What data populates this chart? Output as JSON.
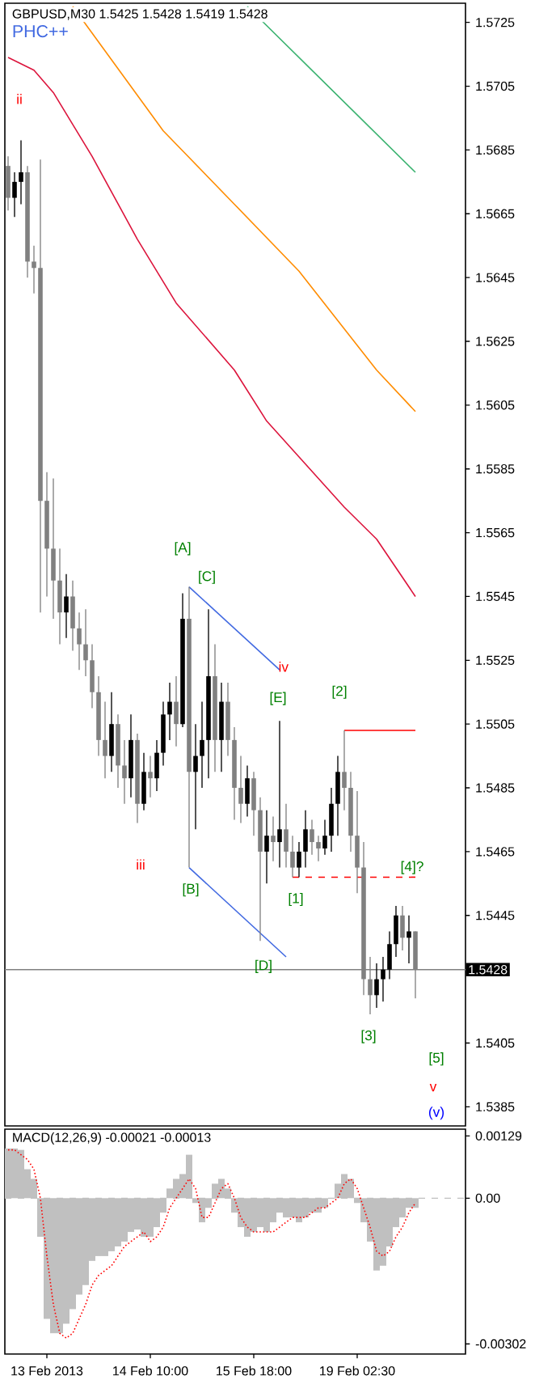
{
  "chart_data": [
    {
      "type": "candlestick",
      "title": "GBPUSD,M30  1.5425 1.5428 1.5419 1.5428",
      "subtitle": "PHC++",
      "categories": [
        null,
        null,
        null,
        null,
        null,
        null,
        null,
        null,
        null,
        null,
        null,
        null,
        null,
        null,
        null,
        null,
        null,
        null,
        null,
        null,
        null,
        null,
        null,
        null,
        null,
        null,
        null,
        null,
        null,
        null,
        null,
        null,
        null,
        null,
        null,
        null,
        null,
        null,
        null,
        null,
        null,
        null,
        null,
        null,
        null,
        null,
        null,
        null,
        null,
        null,
        null,
        null,
        null,
        null,
        null,
        null,
        null,
        null,
        null,
        null,
        null,
        null,
        null,
        null
      ],
      "ohlc": [
        [
          1.568,
          1.5683,
          1.5666,
          1.567
        ],
        [
          1.567,
          1.5678,
          1.5664,
          1.5675
        ],
        [
          1.5675,
          1.5688,
          1.5668,
          1.5678
        ],
        [
          1.5678,
          1.568,
          1.5645,
          1.565
        ],
        [
          1.565,
          1.5655,
          1.564,
          1.5648
        ],
        [
          1.5648,
          1.5682,
          1.554,
          1.5575
        ],
        [
          1.5575,
          1.5584,
          1.5545,
          1.556
        ],
        [
          1.556,
          1.5582,
          1.5538,
          1.555
        ],
        [
          1.555,
          1.556,
          1.553,
          1.554
        ],
        [
          1.554,
          1.5552,
          1.5532,
          1.5545
        ],
        [
          1.5545,
          1.555,
          1.5528,
          1.5535
        ],
        [
          1.5535,
          1.554,
          1.5522,
          1.553
        ],
        [
          1.553,
          1.5541,
          1.552,
          1.5525
        ],
        [
          1.5525,
          1.553,
          1.551,
          1.5515
        ],
        [
          1.5515,
          1.552,
          1.5495,
          1.55
        ],
        [
          1.55,
          1.5512,
          1.5488,
          1.5495
        ],
        [
          1.5495,
          1.5515,
          1.549,
          1.5505
        ],
        [
          1.5505,
          1.5508,
          1.5485,
          1.5492
        ],
        [
          1.5492,
          1.55,
          1.548,
          1.5488
        ],
        [
          1.5488,
          1.5508,
          1.5482,
          1.55
        ],
        [
          1.55,
          1.5502,
          1.5474,
          1.548
        ],
        [
          1.548,
          1.5496,
          1.5478,
          1.549
        ],
        [
          1.549,
          1.5495,
          1.5482,
          1.5488
        ],
        [
          1.5488,
          1.55,
          1.5484,
          1.5496
        ],
        [
          1.5496,
          1.5512,
          1.5492,
          1.5508
        ],
        [
          1.5508,
          1.5518,
          1.55,
          1.5512
        ],
        [
          1.5512,
          1.552,
          1.5498,
          1.5505
        ],
        [
          1.5505,
          1.5546,
          1.5504,
          1.5538
        ],
        [
          1.5538,
          1.5548,
          1.546,
          1.549
        ],
        [
          1.549,
          1.5505,
          1.5472,
          1.5495
        ],
        [
          1.5495,
          1.5512,
          1.5485,
          1.55
        ],
        [
          1.55,
          1.5541,
          1.5488,
          1.552
        ],
        [
          1.552,
          1.553,
          1.549,
          1.55
        ],
        [
          1.55,
          1.5518,
          1.549,
          1.5512
        ],
        [
          1.5512,
          1.5518,
          1.5495,
          1.55
        ],
        [
          1.55,
          1.5504,
          1.5475,
          1.5485
        ],
        [
          1.5485,
          1.5495,
          1.5474,
          1.548
        ],
        [
          1.548,
          1.5492,
          1.5476,
          1.5488
        ],
        [
          1.5488,
          1.549,
          1.547,
          1.5478
        ],
        [
          1.5478,
          1.5482,
          1.5437,
          1.5465
        ],
        [
          1.5465,
          1.5478,
          1.5455,
          1.547
        ],
        [
          1.547,
          1.5476,
          1.5462,
          1.5468
        ],
        [
          1.5468,
          1.5506,
          1.546,
          1.5472
        ],
        [
          1.5472,
          1.548,
          1.546,
          1.5465
        ],
        [
          1.5465,
          1.547,
          1.5457,
          1.546
        ],
        [
          1.546,
          1.5468,
          1.5457,
          1.5465
        ],
        [
          1.5465,
          1.5478,
          1.546,
          1.5472
        ],
        [
          1.5472,
          1.5475,
          1.5464,
          1.5468
        ],
        [
          1.5468,
          1.547,
          1.5462,
          1.5466
        ],
        [
          1.5466,
          1.5475,
          1.5464,
          1.547
        ],
        [
          1.547,
          1.5485,
          1.5465,
          1.548
        ],
        [
          1.548,
          1.5495,
          1.547,
          1.549
        ],
        [
          1.549,
          1.5503,
          1.5478,
          1.5485
        ],
        [
          1.5485,
          1.549,
          1.5465,
          1.547
        ],
        [
          1.547,
          1.5484,
          1.5452,
          1.546
        ],
        [
          1.546,
          1.5468,
          1.542,
          1.5425
        ],
        [
          1.5425,
          1.5432,
          1.5414,
          1.542
        ],
        [
          1.542,
          1.543,
          1.5416,
          1.5425
        ],
        [
          1.5425,
          1.5432,
          1.5418,
          1.5428
        ],
        [
          1.5428,
          1.544,
          1.5425,
          1.5436
        ],
        [
          1.5436,
          1.5448,
          1.5432,
          1.5445
        ],
        [
          1.5445,
          1.5448,
          1.5434,
          1.5438
        ],
        [
          1.5438,
          1.5445,
          1.543,
          1.544
        ],
        [
          1.544,
          1.544,
          1.5419,
          1.5428
        ]
      ],
      "series": [
        {
          "type": "line",
          "color": "#dc143c",
          "values": [
            1.5714,
            null,
            null,
            null,
            1.571,
            null,
            null,
            1.5703,
            null,
            null,
            null,
            null,
            null,
            1.5683,
            null,
            null,
            null,
            null,
            null,
            null,
            1.5657,
            null,
            null,
            null,
            null,
            null,
            1.5637,
            null,
            null,
            null,
            null,
            null,
            null,
            null,
            null,
            1.5616,
            null,
            null,
            null,
            null,
            1.56,
            null,
            null,
            null,
            null,
            null,
            null,
            null,
            null,
            null,
            null,
            null,
            1.5573,
            null,
            null,
            null,
            null,
            1.5563,
            null,
            null,
            null,
            null,
            null,
            1.5545
          ]
        },
        {
          "type": "line",
          "color": "#ff8c00",
          "values": [
            null,
            null,
            null,
            null,
            null,
            null,
            null,
            null,
            null,
            null,
            1.573,
            null,
            null,
            null,
            null,
            null,
            null,
            null,
            null,
            null,
            null,
            null,
            null,
            null,
            1.5691,
            null,
            null,
            null,
            null,
            null,
            null,
            null,
            null,
            null,
            null,
            1.5668,
            null,
            null,
            null,
            null,
            null,
            null,
            null,
            null,
            null,
            1.5647,
            null,
            null,
            null,
            null,
            null,
            null,
            null,
            null,
            null,
            null,
            null,
            1.5616,
            null,
            null,
            null,
            null,
            null,
            1.5603
          ]
        },
        {
          "type": "line",
          "color": "#3cb371",
          "values": [
            null,
            null,
            null,
            null,
            null,
            null,
            null,
            null,
            null,
            null,
            null,
            null,
            null,
            null,
            null,
            null,
            null,
            null,
            null,
            null,
            null,
            null,
            null,
            null,
            null,
            null,
            null,
            null,
            null,
            null,
            null,
            null,
            null,
            null,
            null,
            null,
            null,
            1.573,
            null,
            null,
            null,
            null,
            null,
            null,
            null,
            null,
            null,
            null,
            null,
            1.5706,
            null,
            null,
            null,
            null,
            null,
            null,
            1.5692,
            null,
            null,
            null,
            null,
            null,
            null,
            1.5678
          ]
        },
        {
          "type": "line",
          "color": "#4169e1",
          "values": [
            null,
            null,
            null,
            null,
            null,
            null,
            null,
            null,
            null,
            null,
            null,
            null,
            null,
            null,
            null,
            null,
            null,
            null,
            null,
            null,
            null,
            null,
            null,
            null,
            null,
            null,
            null,
            null,
            1.5548,
            null,
            null,
            null,
            null,
            null,
            null,
            null,
            null,
            null,
            null,
            null,
            null,
            null,
            1.5522,
            null,
            null,
            null,
            null,
            null,
            null,
            null,
            null,
            null,
            null,
            null,
            null,
            null,
            null,
            null,
            null,
            null,
            null,
            null,
            null,
            null
          ]
        },
        {
          "type": "line",
          "color": "#4169e1",
          "values": [
            null,
            null,
            null,
            null,
            null,
            null,
            null,
            null,
            null,
            null,
            null,
            null,
            null,
            null,
            null,
            null,
            null,
            null,
            null,
            null,
            null,
            null,
            null,
            null,
            null,
            null,
            null,
            null,
            1.546,
            null,
            null,
            null,
            null,
            null,
            null,
            null,
            null,
            null,
            null,
            null,
            null,
            null,
            null,
            1.5432,
            null,
            null,
            null,
            null,
            null,
            null,
            null,
            null,
            null,
            null,
            null,
            null,
            null,
            null,
            null,
            null,
            null,
            null,
            null,
            null
          ]
        },
        {
          "type": "line",
          "color": "#ff0000",
          "values": [
            null,
            null,
            null,
            null,
            null,
            null,
            null,
            null,
            null,
            null,
            null,
            null,
            null,
            null,
            null,
            null,
            null,
            null,
            null,
            null,
            null,
            null,
            null,
            null,
            null,
            null,
            null,
            null,
            null,
            null,
            null,
            null,
            null,
            null,
            null,
            null,
            null,
            null,
            null,
            null,
            null,
            null,
            null,
            null,
            null,
            null,
            null,
            null,
            null,
            null,
            null,
            null,
            1.5503,
            null,
            null,
            null,
            null,
            null,
            null,
            null,
            null,
            null,
            null,
            1.5503
          ]
        },
        {
          "type": "line",
          "color": "#ff0000",
          "line_style": "dashed",
          "values": [
            null,
            null,
            null,
            null,
            null,
            null,
            null,
            null,
            null,
            null,
            null,
            null,
            null,
            null,
            null,
            null,
            null,
            null,
            null,
            null,
            null,
            null,
            null,
            null,
            null,
            null,
            null,
            null,
            null,
            null,
            null,
            null,
            null,
            null,
            null,
            null,
            null,
            null,
            null,
            null,
            null,
            null,
            null,
            null,
            1.5457,
            null,
            null,
            null,
            null,
            null,
            null,
            null,
            null,
            null,
            null,
            null,
            null,
            null,
            null,
            null,
            null,
            null,
            null,
            1.5457
          ]
        }
      ],
      "ylim": [
        1.5379,
        1.5731
      ],
      "yticks": [
        1.5725,
        1.5705,
        1.5685,
        1.5665,
        1.5645,
        1.5625,
        1.5605,
        1.5585,
        1.5565,
        1.5545,
        1.5525,
        1.5505,
        1.5485,
        1.5465,
        1.5445,
        1.5405,
        1.5385
      ],
      "tick_labels": "y",
      "ref_lines": [
        {
          "axis": "y",
          "value": 1.5428,
          "label": "1.5428",
          "color": "#808080"
        }
      ],
      "annotations": [
        "ii",
        "[A]",
        "[C]",
        "iv",
        "[E]",
        "[2]",
        "iii",
        "[B]",
        "[1]",
        "[4]?",
        "[D]",
        "[3]",
        "[5]",
        "v",
        "(v)"
      ]
    },
    {
      "type": "bar",
      "title": "MACD(12,26,9) -0.00021 -0.00013",
      "categories": [
        null,
        null,
        null,
        null,
        null,
        null,
        "13 Feb 2013",
        null,
        null,
        null,
        null,
        null,
        null,
        null,
        null,
        null,
        null,
        null,
        null,
        null,
        null,
        null,
        "14 Feb 10:00",
        null,
        null,
        null,
        null,
        null,
        null,
        null,
        null,
        null,
        null,
        null,
        null,
        null,
        null,
        null,
        "15 Feb 18:00",
        null,
        null,
        null,
        null,
        null,
        null,
        null,
        null,
        null,
        null,
        null,
        null,
        null,
        null,
        null,
        "19 Feb 02:30",
        null,
        null,
        null,
        null,
        null,
        null,
        null,
        null,
        null
      ],
      "series": [
        {
          "type": "bar",
          "color": "#c0c0c0",
          "values": [
            0.00103,
            0.00103,
            0.001,
            0.0006,
            0.0004,
            -0.0008,
            -0.0025,
            -0.0028,
            -0.0028,
            -0.0026,
            -0.0023,
            -0.002,
            -0.0018,
            -0.0013,
            -0.0012,
            -0.0012,
            -0.0011,
            -0.001,
            -0.0009,
            -0.0007,
            -0.00065,
            -0.0008,
            -0.0008,
            -0.0006,
            -0.0003,
            0.0002,
            0.0004,
            0.0005,
            0.0009,
            -0.0001,
            -0.0005,
            -0.0002,
            0.0003,
            0.0004,
            0.0002,
            -0.0003,
            -0.0006,
            -0.0008,
            -0.0007,
            -0.0006,
            -0.0007,
            -0.0005,
            -0.0003,
            -0.0004,
            -0.0004,
            -0.0005,
            -0.0004,
            -0.0003,
            -0.0003,
            -0.0002,
            0.0,
            0.0003,
            0.0005,
            0.0004,
            -0.0001,
            -0.0005,
            -0.0009,
            -0.0015,
            -0.0014,
            -0.001,
            -0.0006,
            -0.0004,
            -0.0002,
            -0.0002
          ]
        },
        {
          "type": "line",
          "color": "#ff0000",
          "line_style": "dotted",
          "values": [
            0.001,
            0.001,
            0.0009,
            0.0008,
            0.0006,
            0.0,
            -0.0012,
            -0.0022,
            -0.0028,
            -0.0029,
            -0.0028,
            -0.0025,
            -0.0022,
            -0.0018,
            -0.0016,
            -0.0015,
            -0.0014,
            -0.0012,
            -0.001,
            -0.0009,
            -0.0008,
            -0.0007,
            -0.0009,
            -0.0008,
            -0.0006,
            -0.0002,
            0.0,
            0.0002,
            0.0004,
            0.0002,
            -0.0004,
            -0.0004,
            -0.0001,
            0.0002,
            0.0003,
            0.0,
            -0.0004,
            -0.0006,
            -0.0007,
            -0.0007,
            -0.0007,
            -0.0007,
            -0.0006,
            -0.0005,
            -0.0004,
            -0.0004,
            -0.0004,
            -0.0003,
            -0.0002,
            -0.0002,
            -0.0001,
            0.0,
            0.0003,
            0.0004,
            0.0002,
            -0.0002,
            -0.0006,
            -0.0011,
            -0.0012,
            -0.0011,
            -0.0008,
            -0.0006,
            -0.0003,
            -0.0001
          ]
        }
      ],
      "ylim": [
        -0.00323,
        0.00143
      ],
      "yticks": [
        {
          "value": 0.00129,
          "label": "0.00129"
        },
        {
          "value": 0,
          "label": "0.00"
        },
        {
          "value": -0.00302,
          "label": "-0.00302"
        }
      ],
      "ref_lines": [
        {
          "axis": "y",
          "value": 0,
          "color": "#c0c0c0",
          "line_style": "dashed"
        }
      ]
    }
  ]
}
